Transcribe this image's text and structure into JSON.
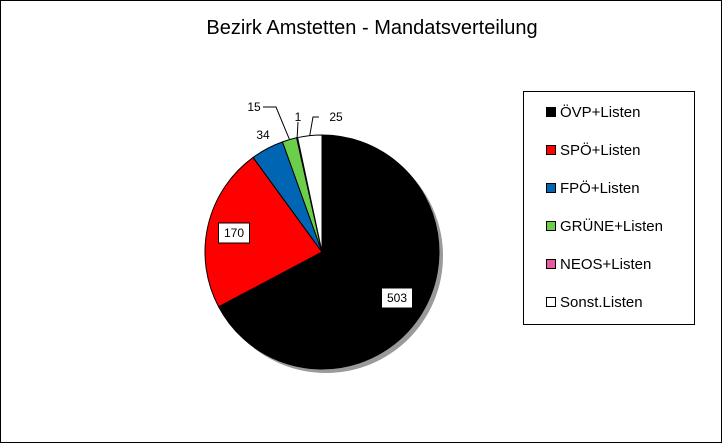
{
  "chart_data": {
    "type": "pie",
    "title": "Bezirk Amstetten - Mandatsverteilung",
    "categories": [
      "ÖVP+Listen",
      "SPÖ+Listen",
      "FPÖ+Listen",
      "GRÜNE+Listen",
      "NEOS+Listen",
      "Sonst.Listen"
    ],
    "values": [
      503,
      170,
      34,
      15,
      1,
      25
    ],
    "colors": [
      "#000000",
      "#ff0000",
      "#0066b3",
      "#6ccf4c",
      "#e75a9e",
      "#ffffff"
    ],
    "data_labels": [
      "503",
      "170",
      "34",
      "15",
      "1",
      "25"
    ],
    "legend_position": "right"
  }
}
